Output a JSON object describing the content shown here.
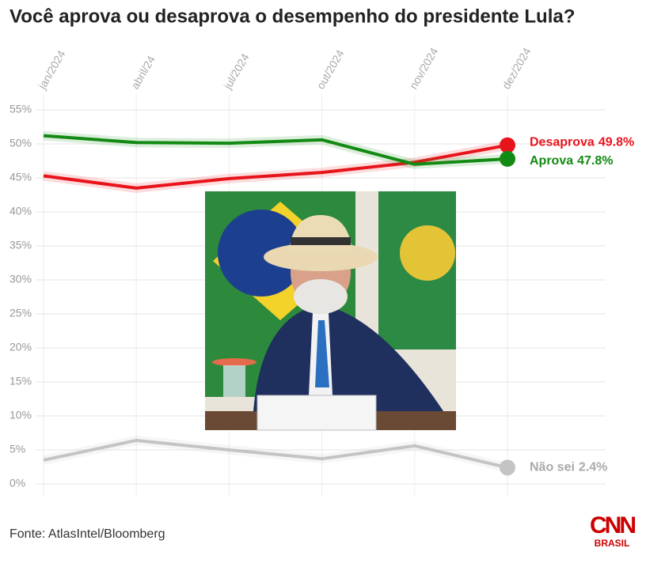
{
  "chart_data": {
    "type": "line",
    "title": "Você aprova ou desaprova o desempenho do presidente Lula?",
    "categories": [
      "jan/2024",
      "abril/24",
      "jul/2024",
      "out/2024",
      "nov/2024",
      "dez/2024"
    ],
    "series": [
      {
        "name": "Desaprova",
        "color": "#e8141c",
        "values": [
          45.3,
          43.5,
          44.9,
          45.8,
          47.3,
          49.8
        ],
        "value_labels": [
          null,
          null,
          null,
          null,
          null,
          "49.8%"
        ]
      },
      {
        "name": "Aprova",
        "color": "#138a13",
        "values": [
          51.2,
          50.2,
          50.1,
          50.6,
          47.0,
          47.8
        ],
        "value_labels": [
          null,
          null,
          null,
          null,
          null,
          "47.8%"
        ]
      },
      {
        "name": "Não sei",
        "color": "#c4c4c4",
        "values": [
          3.5,
          6.4,
          5.0,
          3.7,
          5.6,
          2.4
        ],
        "value_labels": [
          null,
          null,
          null,
          null,
          null,
          "2.4%"
        ]
      }
    ],
    "ylim": [
      0,
      55
    ],
    "yticks": [
      {
        "value": 0,
        "label": "0%"
      },
      {
        "value": 5,
        "label": "5%"
      },
      {
        "value": 10,
        "label": "10%"
      },
      {
        "value": 15,
        "label": "15%"
      },
      {
        "value": 20,
        "label": "20%"
      },
      {
        "value": 25,
        "label": "25%"
      },
      {
        "value": 30,
        "label": "30%"
      },
      {
        "value": 35,
        "label": "35%"
      },
      {
        "value": 40,
        "label": "40%"
      },
      {
        "value": 45,
        "label": "45%"
      },
      {
        "value": 50,
        "label": "50%"
      },
      {
        "value": 55,
        "label": "55%"
      }
    ],
    "grid": true,
    "source": "Fonte: AtlasIntel/Bloomberg",
    "logo": {
      "name": "CNN",
      "subtitle": "BRASIL"
    }
  }
}
